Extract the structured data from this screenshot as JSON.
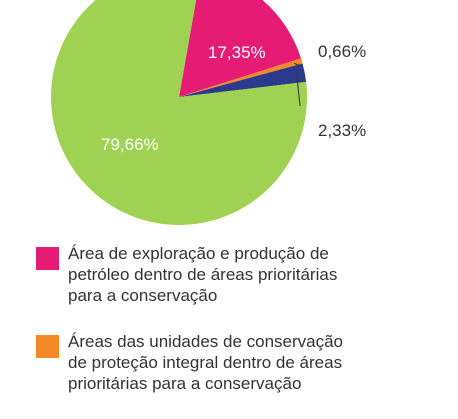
{
  "chart_data": {
    "type": "pie",
    "series": [
      {
        "value": 17.35,
        "label": "17,35%",
        "color": "#e61b73",
        "legend": "Área de exploração e produção de\npetróleo dentro de áreas prioritárias\npara a conservação"
      },
      {
        "value": 0.66,
        "label": "0,66%",
        "color": "#f4892a",
        "legend": "Áreas das unidades de conservação\nde proteção integral dentro de áreas\nprioritárias para a conservação"
      },
      {
        "value": 2.33,
        "label": "2,33%",
        "color": "#2b3a8a",
        "legend": ""
      },
      {
        "value": 79.66,
        "label": "79,66%",
        "color": "#9fd152",
        "legend": ""
      }
    ]
  }
}
